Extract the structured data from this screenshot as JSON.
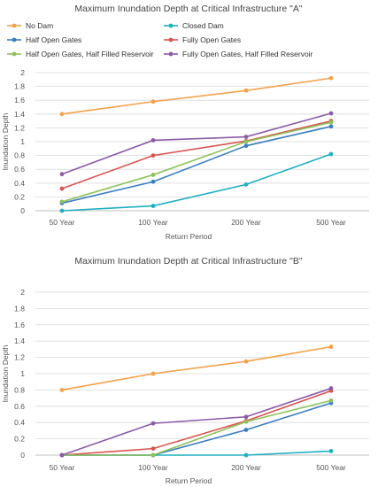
{
  "colors": {
    "no_dam": "#F4A14A",
    "closed_dam": "#1FAFC3",
    "half_open": "#3A7DC1",
    "fully_open": "#D9534F",
    "half_open_half_res": "#8DC15A",
    "fully_open_half_res": "#8B5BA6",
    "grid": "#D9D9D9",
    "axis": "#BFBFBF"
  },
  "chart_data": [
    {
      "type": "line",
      "title": "Maximum Inundation Depth at Critical Infrastructure \"A\"",
      "xlabel": "Return Period",
      "ylabel": "Inundation Depth",
      "categories": [
        "50 Year",
        "100 Year",
        "200 Year",
        "500 Year"
      ],
      "ylim": [
        0,
        2
      ],
      "yticks": [
        "0",
        "0.2",
        "0.4",
        "0.6",
        "0.8",
        "1",
        "1.2",
        "1.4",
        "1.6",
        "1.8",
        "2"
      ],
      "grid": true,
      "legend": "top",
      "series": [
        {
          "name": "No Dam",
          "color_key": "no_dam",
          "values": [
            1.4,
            1.58,
            1.74,
            1.92
          ]
        },
        {
          "name": "Closed Dam",
          "color_key": "closed_dam",
          "values": [
            0.0,
            0.07,
            0.38,
            0.82
          ]
        },
        {
          "name": "Half Open Gates",
          "color_key": "half_open",
          "values": [
            0.11,
            0.42,
            0.94,
            1.22
          ]
        },
        {
          "name": "Fully Open Gates",
          "color_key": "fully_open",
          "values": [
            0.32,
            0.8,
            1.01,
            1.3
          ]
        },
        {
          "name": "Half Open Gates, Half Filled Reservoir",
          "color_key": "half_open_half_res",
          "values": [
            0.13,
            0.52,
            1.0,
            1.28
          ]
        },
        {
          "name": "Fully Open Gates, Half Filled Reservoir",
          "color_key": "fully_open_half_res",
          "values": [
            0.53,
            1.02,
            1.07,
            1.41
          ]
        }
      ]
    },
    {
      "type": "line",
      "title": "Maximum Inundation Depth at Critical Infrastructure \"B\"",
      "xlabel": "Return Period",
      "ylabel": "Inundation Depth",
      "categories": [
        "50 Year",
        "100 Year",
        "200 Year",
        "500 Year"
      ],
      "ylim": [
        0,
        2
      ],
      "yticks": [
        "0",
        "0.2",
        "0.4",
        "0.6",
        "0.8",
        "1",
        "1.2",
        "1.4",
        "1.6",
        "1.8",
        "2"
      ],
      "grid": true,
      "legend": "none",
      "series": [
        {
          "name": "No Dam",
          "color_key": "no_dam",
          "values": [
            0.8,
            1.0,
            1.15,
            1.33
          ]
        },
        {
          "name": "Closed Dam",
          "color_key": "closed_dam",
          "values": [
            0.0,
            0.0,
            0.0,
            0.05
          ]
        },
        {
          "name": "Half Open Gates",
          "color_key": "half_open",
          "values": [
            0.0,
            0.0,
            0.31,
            0.64
          ]
        },
        {
          "name": "Fully Open Gates",
          "color_key": "fully_open",
          "values": [
            0.0,
            0.08,
            0.42,
            0.79
          ]
        },
        {
          "name": "Half Open Gates, Half Filled Reservoir",
          "color_key": "half_open_half_res",
          "values": [
            0.0,
            0.0,
            0.41,
            0.67
          ]
        },
        {
          "name": "Fully Open Gates, Half Filled Reservoir",
          "color_key": "fully_open_half_res",
          "values": [
            0.0,
            0.39,
            0.47,
            0.82
          ]
        }
      ]
    }
  ]
}
